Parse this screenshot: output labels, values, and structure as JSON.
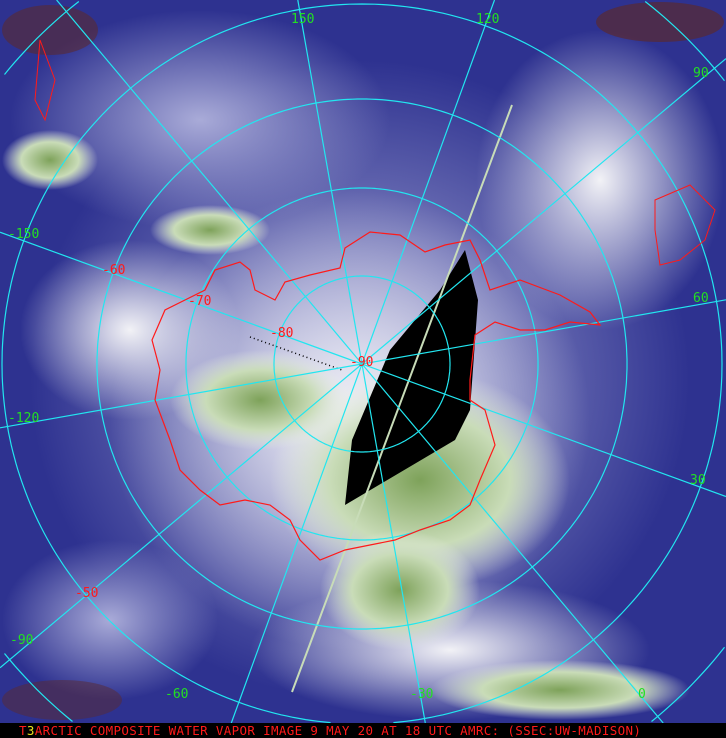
{
  "caption": {
    "frame_number": "3",
    "text_prefix": "T",
    "text": "ARCTIC COMPOSITE WATER VAPOR IMAGE 9 MAY 20 AT 18 UTC AMRC: (SSEC:UW-MADISON)"
  },
  "longitude_labels": [
    "150",
    "120",
    "90",
    "60",
    "30",
    "0",
    "-30",
    "-60",
    "-90",
    "-120",
    "-150"
  ],
  "latitude_labels": [
    "-50",
    "-60",
    "-70",
    "-80",
    "-90"
  ],
  "colors": {
    "grid": "#22e6f0",
    "coastline": "#ff1a1a",
    "longitude_label": "#22e022",
    "latitude_label": "#ff1a1a",
    "moist": "#2b2f86",
    "dry": "#6f9a4a",
    "no_data": "#000000"
  }
}
